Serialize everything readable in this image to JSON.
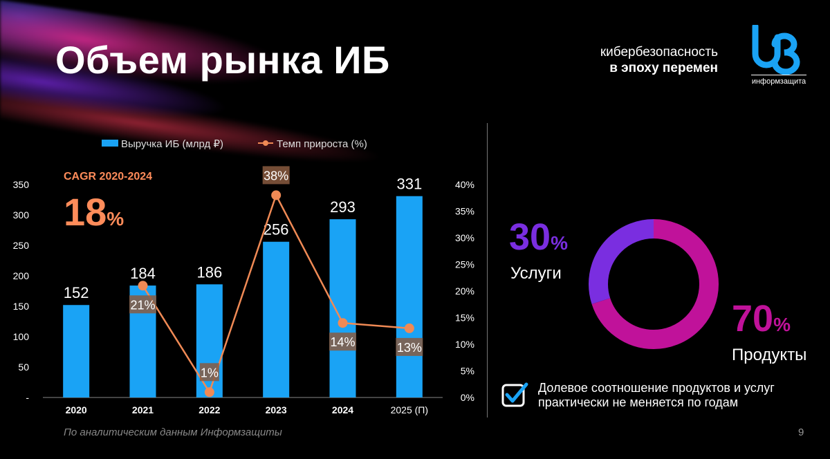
{
  "slide": {
    "title": "Объем рынка ИБ",
    "tagline_line1": "кибербезопасность",
    "tagline_line2": "в эпоху перемен",
    "logo_text": "информзащита",
    "cagr_label": "CAGR 2020-2024",
    "cagr_value": "18",
    "cagr_unit": "%",
    "share_services_value": "30",
    "share_services_unit": "%",
    "share_services_label": "Услуги",
    "share_products_value": "70",
    "share_products_unit": "%",
    "share_products_label": "Продукты",
    "note_line1": "Долевое соотношение продуктов и услуг",
    "note_line2": "практически не меняется по годам",
    "footer": "По аналитическим данным Информзащиты",
    "page_number": "9"
  },
  "colors": {
    "bar": "#1aa3f5",
    "line": "#f08a55",
    "services": "#7a2ee0",
    "products": "#c0129a",
    "axis": "#cccccc"
  },
  "chart_data": [
    {
      "type": "bar",
      "title": "",
      "legend": [
        "Выручка ИБ (млрд ₽)",
        "Темп прироста (%)"
      ],
      "legend_position": "top",
      "categories": [
        "2020",
        "2021",
        "2022",
        "2023",
        "2024",
        "2025 (П)"
      ],
      "series": [
        {
          "name": "Выручка ИБ (млрд ₽)",
          "type": "bar",
          "axis": "left",
          "values": [
            152,
            184,
            186,
            256,
            293,
            331
          ],
          "labels": [
            "152",
            "184",
            "186",
            "256",
            "293",
            "331"
          ]
        },
        {
          "name": "Темп прироста (%)",
          "type": "line",
          "axis": "right",
          "values": [
            null,
            21,
            1,
            38,
            14,
            13
          ],
          "labels": [
            "",
            "21%",
            "1%",
            "38%",
            "14%",
            "13%"
          ]
        }
      ],
      "ylim_left": [
        0,
        350
      ],
      "yticks_left": [
        "-",
        "50",
        "100",
        "150",
        "200",
        "250",
        "300",
        "350"
      ],
      "ylim_right": [
        0,
        40
      ],
      "yticks_right": [
        "0%",
        "5%",
        "10%",
        "15%",
        "20%",
        "25%",
        "30%",
        "35%",
        "40%"
      ]
    },
    {
      "type": "pie",
      "title": "",
      "categories": [
        "Услуги",
        "Продукты"
      ],
      "values": [
        30,
        70
      ]
    }
  ]
}
